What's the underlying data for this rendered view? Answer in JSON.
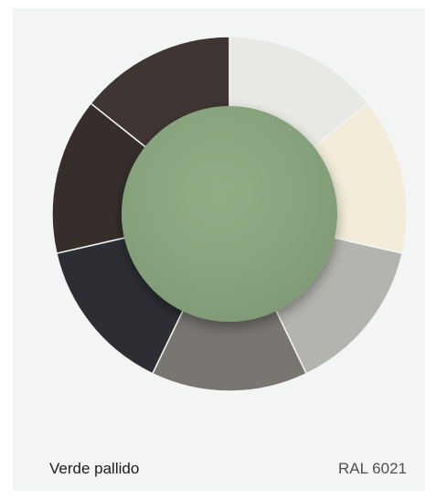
{
  "color": {
    "name": "Verde pallido",
    "code": "RAL 6021",
    "hex": "#89a87f"
  },
  "wheel": {
    "segments": [
      {
        "name": "segment-light-grey-white",
        "color": "#e8e8e4"
      },
      {
        "name": "segment-cream",
        "color": "#f2ecd9"
      },
      {
        "name": "segment-silver-grey",
        "color": "#b3b4ae"
      },
      {
        "name": "segment-mid-grey",
        "color": "#797672"
      },
      {
        "name": "segment-graphite",
        "color": "#2d2e33"
      },
      {
        "name": "segment-dark-brown",
        "color": "#352e2b"
      },
      {
        "name": "segment-brown-grey",
        "color": "#3f3533"
      }
    ]
  }
}
